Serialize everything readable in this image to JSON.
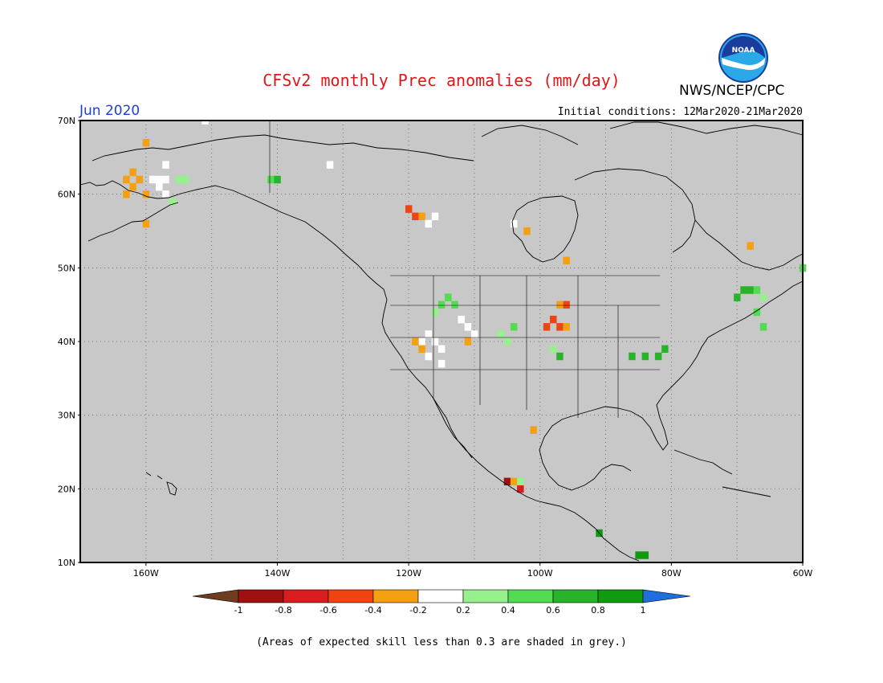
{
  "header": {
    "title": "CFSv2 monthly Prec anomalies (mm/day)",
    "agency": "NWS/NCEP/CPC",
    "logo_text": "NOAA",
    "month": "Jun 2020",
    "initial_conditions": "Initial conditions: 12Mar2020-21Mar2020"
  },
  "map": {
    "projection": "lat-lon",
    "lon_range": [
      -170,
      -60
    ],
    "lat_range": [
      10,
      70
    ],
    "lat_ticks": [
      "10N",
      "20N",
      "30N",
      "40N",
      "50N",
      "60N",
      "70N"
    ],
    "lon_ticks": [
      "160W",
      "140W",
      "120W",
      "100W",
      "80W",
      "60W"
    ],
    "land_background": "#c8c8c8",
    "anomaly_cells": [
      {
        "lon": -162,
        "lat": 63,
        "value": -0.3
      },
      {
        "lon": -163,
        "lat": 62,
        "value": -0.3
      },
      {
        "lon": -161,
        "lat": 62,
        "value": -0.3
      },
      {
        "lon": -162,
        "lat": 61,
        "value": -0.3
      },
      {
        "lon": -163,
        "lat": 60,
        "value": -0.3
      },
      {
        "lon": -160,
        "lat": 60,
        "value": -0.3
      },
      {
        "lon": -159,
        "lat": 62,
        "value": 0.0
      },
      {
        "lon": -158,
        "lat": 62,
        "value": 0.0
      },
      {
        "lon": -157,
        "lat": 62,
        "value": 0.0
      },
      {
        "lon": -158,
        "lat": 61,
        "value": 0.0
      },
      {
        "lon": -157,
        "lat": 60,
        "value": 0.0
      },
      {
        "lon": -155,
        "lat": 62,
        "value": 0.3
      },
      {
        "lon": -154,
        "lat": 62,
        "value": 0.3
      },
      {
        "lon": -156,
        "lat": 59,
        "value": 0.3
      },
      {
        "lon": -157,
        "lat": 64,
        "value": 0.0
      },
      {
        "lon": -160,
        "lat": 67,
        "value": -0.3
      },
      {
        "lon": -160,
        "lat": 56,
        "value": -0.3
      },
      {
        "lon": -141,
        "lat": 62,
        "value": 0.5
      },
      {
        "lon": -140,
        "lat": 62,
        "value": 0.7
      },
      {
        "lon": -151,
        "lat": 70,
        "value": 0.0
      },
      {
        "lon": -132,
        "lat": 64,
        "value": 0.0
      },
      {
        "lon": -120,
        "lat": 58,
        "value": -0.5
      },
      {
        "lon": -119,
        "lat": 57,
        "value": -0.5
      },
      {
        "lon": -118,
        "lat": 57,
        "value": -0.3
      },
      {
        "lon": -116,
        "lat": 57,
        "value": 0.0
      },
      {
        "lon": -117,
        "lat": 56,
        "value": 0.0
      },
      {
        "lon": -104,
        "lat": 56,
        "value": 0.0
      },
      {
        "lon": -102,
        "lat": 55,
        "value": -0.3
      },
      {
        "lon": -96,
        "lat": 51,
        "value": -0.3
      },
      {
        "lon": -114,
        "lat": 46,
        "value": 0.5
      },
      {
        "lon": -115,
        "lat": 45,
        "value": 0.5
      },
      {
        "lon": -116,
        "lat": 44,
        "value": 0.3
      },
      {
        "lon": -113,
        "lat": 45,
        "value": 0.5
      },
      {
        "lon": -112,
        "lat": 43,
        "value": 0.0
      },
      {
        "lon": -111,
        "lat": 42,
        "value": 0.0
      },
      {
        "lon": -110,
        "lat": 41,
        "value": 0.0
      },
      {
        "lon": -117,
        "lat": 41,
        "value": 0.0
      },
      {
        "lon": -118,
        "lat": 40,
        "value": 0.0
      },
      {
        "lon": -116,
        "lat": 40,
        "value": 0.0
      },
      {
        "lon": -115,
        "lat": 39,
        "value": 0.0
      },
      {
        "lon": -117,
        "lat": 38,
        "value": 0.0
      },
      {
        "lon": -115,
        "lat": 37,
        "value": 0.0
      },
      {
        "lon": -119,
        "lat": 40,
        "value": -0.3
      },
      {
        "lon": -118,
        "lat": 39,
        "value": -0.3
      },
      {
        "lon": -111,
        "lat": 40,
        "value": -0.3
      },
      {
        "lon": -106,
        "lat": 41,
        "value": 0.3
      },
      {
        "lon": -105,
        "lat": 40,
        "value": 0.3
      },
      {
        "lon": -104,
        "lat": 42,
        "value": 0.5
      },
      {
        "lon": -99,
        "lat": 42,
        "value": -0.5
      },
      {
        "lon": -98,
        "lat": 43,
        "value": -0.5
      },
      {
        "lon": -97,
        "lat": 42,
        "value": -0.5
      },
      {
        "lon": -96,
        "lat": 45,
        "value": -0.5
      },
      {
        "lon": -97,
        "lat": 45,
        "value": -0.3
      },
      {
        "lon": -96,
        "lat": 42,
        "value": -0.3
      },
      {
        "lon": -98,
        "lat": 39,
        "value": 0.3
      },
      {
        "lon": -97,
        "lat": 38,
        "value": 0.7
      },
      {
        "lon": -86,
        "lat": 38,
        "value": 0.7
      },
      {
        "lon": -84,
        "lat": 38,
        "value": 0.7
      },
      {
        "lon": -82,
        "lat": 38,
        "value": 0.7
      },
      {
        "lon": -81,
        "lat": 39,
        "value": 0.7
      },
      {
        "lon": -69,
        "lat": 47,
        "value": 0.7
      },
      {
        "lon": -68,
        "lat": 47,
        "value": 0.7
      },
      {
        "lon": -67,
        "lat": 47,
        "value": 0.5
      },
      {
        "lon": -70,
        "lat": 46,
        "value": 0.7
      },
      {
        "lon": -66,
        "lat": 46,
        "value": 0.3
      },
      {
        "lon": -67,
        "lat": 44,
        "value": 0.5
      },
      {
        "lon": -66,
        "lat": 42,
        "value": 0.5
      },
      {
        "lon": -68,
        "lat": 53,
        "value": -0.3
      },
      {
        "lon": -60,
        "lat": 50,
        "value": 0.5
      },
      {
        "lon": -101,
        "lat": 28,
        "value": -0.3
      },
      {
        "lon": -105,
        "lat": 21,
        "value": -0.9
      },
      {
        "lon": -104,
        "lat": 21,
        "value": -0.3
      },
      {
        "lon": -103,
        "lat": 20,
        "value": -0.7
      },
      {
        "lon": -103,
        "lat": 21,
        "value": 0.3
      },
      {
        "lon": -91,
        "lat": 14,
        "value": 0.95
      },
      {
        "lon": -85,
        "lat": 11,
        "value": 0.95
      },
      {
        "lon": -84,
        "lat": 11,
        "value": 0.95
      }
    ]
  },
  "colorbar": {
    "labels": [
      "-1",
      "-0.8",
      "-0.6",
      "-0.4",
      "-0.2",
      "0.2",
      "0.4",
      "0.6",
      "0.8",
      "1"
    ],
    "bins": [
      {
        "min": -1.0,
        "max": -0.8,
        "color": "#a01010"
      },
      {
        "min": -0.8,
        "max": -0.6,
        "color": "#d81e1e"
      },
      {
        "min": -0.6,
        "max": -0.4,
        "color": "#f04410"
      },
      {
        "min": -0.4,
        "max": -0.2,
        "color": "#f5a013"
      },
      {
        "min": -0.2,
        "max": 0.2,
        "color": "#ffffff"
      },
      {
        "min": 0.2,
        "max": 0.4,
        "color": "#96f08c"
      },
      {
        "min": 0.4,
        "max": 0.6,
        "color": "#52dc52"
      },
      {
        "min": 0.6,
        "max": 0.8,
        "color": "#28b428"
      },
      {
        "min": 0.8,
        "max": 1.0,
        "color": "#0e9b0e"
      }
    ],
    "low_color": "#6e3c1e",
    "high_color": "#1e6edc"
  },
  "footnote": "(Areas of expected skill less than 0.3 are shaded in grey.)"
}
